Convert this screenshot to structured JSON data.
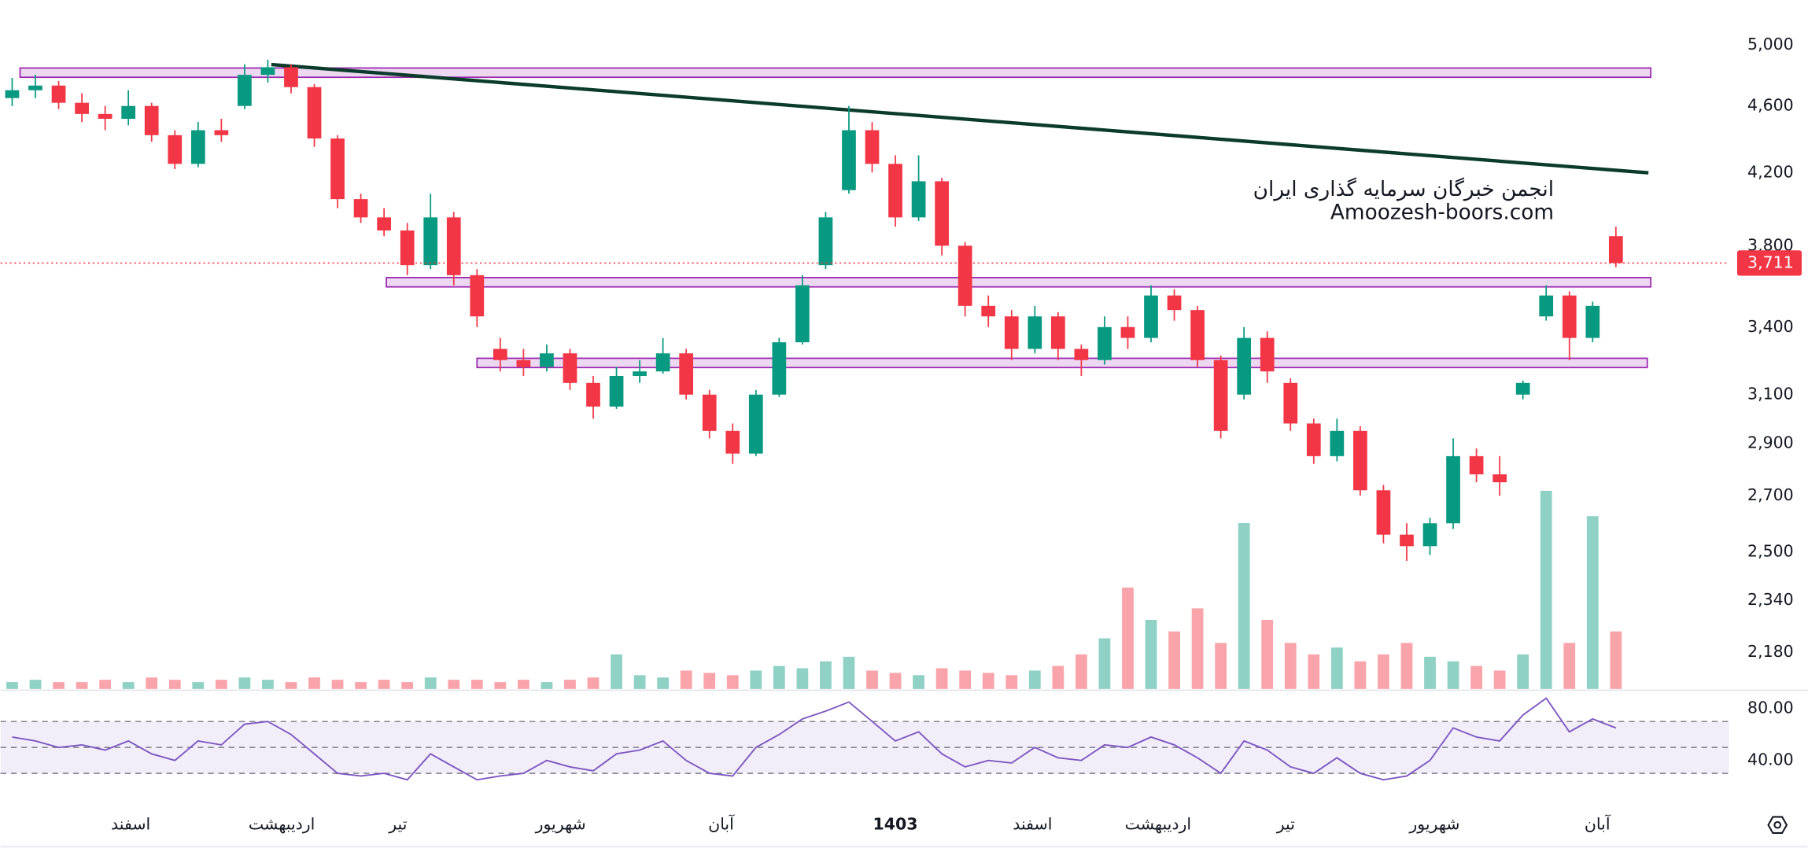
{
  "chart_data": {
    "type": "candlestick",
    "log_scale": true,
    "ylim": [
      2073,
      5317
    ],
    "yticks": [
      {
        "value": 2180,
        "label": "2,180"
      },
      {
        "value": 2340,
        "label": "2,340"
      },
      {
        "value": 2500,
        "label": "2,500"
      },
      {
        "value": 2700,
        "label": "2,700"
      },
      {
        "value": 2900,
        "label": "2,900"
      },
      {
        "value": 3100,
        "label": "3,100"
      },
      {
        "value": 3400,
        "label": "3,400"
      },
      {
        "value": 3800,
        "label": "3,800"
      },
      {
        "value": 4200,
        "label": "4,200"
      },
      {
        "value": 4600,
        "label": "4,600"
      },
      {
        "value": 5000,
        "label": "5,000"
      }
    ],
    "xlim": [
      -0.5,
      73.87
    ],
    "xticks": [
      {
        "value": 5.1,
        "label": "اسفند"
      },
      {
        "value": 11.6,
        "label": "اردیبهشت"
      },
      {
        "value": 16.6,
        "label": "تیر"
      },
      {
        "value": 23.6,
        "label": "شهریور"
      },
      {
        "value": 30.5,
        "label": "آبان"
      },
      {
        "value": 38,
        "label": "1403"
      },
      {
        "value": 43.9,
        "label": "اسفند"
      },
      {
        "value": 49.3,
        "label": "اردیبهشت"
      },
      {
        "value": 54.8,
        "label": "تیر"
      },
      {
        "value": 61.2,
        "label": "شهریور"
      },
      {
        "value": 68.2,
        "label": "آبان"
      }
    ],
    "open": [
      4650,
      4700,
      4730,
      4620,
      4550,
      4520,
      4600,
      4420,
      4250,
      4450,
      4600,
      4800,
      4850,
      4720,
      4400,
      4050,
      3950,
      3880,
      3700,
      3950,
      3650,
      3300,
      3250,
      3220,
      3280,
      3150,
      3050,
      3180,
      3200,
      3280,
      3100,
      2950,
      2860,
      3100,
      3330,
      3700,
      4100,
      4450,
      4250,
      3950,
      4150,
      3800,
      3500,
      3450,
      3300,
      3450,
      3300,
      3250,
      3400,
      3350,
      3550,
      3480,
      3250,
      3100,
      3350,
      3150,
      2980,
      2850,
      2950,
      2720,
      2560,
      2520,
      2600,
      2850,
      2780,
      3100,
      3450,
      3550,
      3350,
      3850
    ],
    "high": [
      4780,
      4800,
      4760,
      4680,
      4600,
      4700,
      4620,
      4450,
      4500,
      4520,
      4870,
      4900,
      4870,
      4740,
      4420,
      4080,
      4000,
      3920,
      4080,
      3980,
      3680,
      3350,
      3300,
      3320,
      3300,
      3180,
      3220,
      3250,
      3350,
      3300,
      3120,
      2980,
      3120,
      3350,
      3650,
      3980,
      4600,
      4500,
      4300,
      4300,
      4170,
      3820,
      3550,
      3480,
      3500,
      3470,
      3320,
      3450,
      3450,
      3600,
      3580,
      3500,
      3270,
      3400,
      3380,
      3170,
      3000,
      3000,
      2970,
      2740,
      2600,
      2620,
      2920,
      2880,
      2850,
      3160,
      3600,
      3570,
      3520,
      3900
    ],
    "low": [
      4600,
      4650,
      4580,
      4500,
      4450,
      4480,
      4380,
      4220,
      4230,
      4380,
      4580,
      4750,
      4680,
      4350,
      4000,
      3920,
      3850,
      3650,
      3680,
      3600,
      3400,
      3200,
      3180,
      3200,
      3120,
      3000,
      3040,
      3150,
      3190,
      3080,
      2920,
      2820,
      2850,
      3090,
      3320,
      3680,
      4080,
      4200,
      3900,
      3930,
      3750,
      3450,
      3400,
      3250,
      3280,
      3250,
      3180,
      3230,
      3300,
      3330,
      3430,
      3220,
      2920,
      3080,
      3150,
      2950,
      2820,
      2830,
      2700,
      2530,
      2470,
      2490,
      2580,
      2750,
      2700,
      3080,
      3430,
      3250,
      3330,
      3690
    ],
    "close": [
      4700,
      4730,
      4620,
      4550,
      4520,
      4600,
      4420,
      4250,
      4450,
      4420,
      4800,
      4850,
      4720,
      4400,
      4050,
      3950,
      3880,
      3700,
      3950,
      3650,
      3450,
      3250,
      3220,
      3280,
      3150,
      3050,
      3180,
      3200,
      3280,
      3100,
      2950,
      2860,
      3100,
      3330,
      3600,
      3950,
      4450,
      4250,
      3950,
      4150,
      3800,
      3500,
      3450,
      3300,
      3450,
      3300,
      3250,
      3400,
      3350,
      3550,
      3480,
      3250,
      2950,
      3350,
      3200,
      2980,
      2850,
      2950,
      2720,
      2560,
      2520,
      2600,
      2850,
      2780,
      2750,
      3150,
      3550,
      3350,
      3500,
      3711
    ],
    "up_color": "#089981",
    "down_color": "#f23645",
    "volume": {
      "ylim": [
        0,
        100
      ],
      "values": [
        3,
        4,
        3,
        3,
        4,
        3,
        5,
        4,
        3,
        4,
        5,
        4,
        3,
        5,
        4,
        3,
        4,
        3,
        5,
        4,
        4,
        3,
        4,
        3,
        4,
        5,
        15,
        6,
        5,
        8,
        7,
        6,
        8,
        10,
        9,
        12,
        14,
        8,
        7,
        6,
        9,
        8,
        7,
        6,
        8,
        10,
        15,
        22,
        44,
        30,
        25,
        35,
        20,
        72,
        30,
        20,
        15,
        18,
        12,
        15,
        20,
        14,
        12,
        10,
        8,
        15,
        86,
        20,
        75,
        25
      ]
    },
    "zones": [
      {
        "from": 4784,
        "to": 4845,
        "start": 0.34,
        "end": 70.5
      },
      {
        "from": 3592,
        "to": 3638,
        "start": 16.1,
        "end": 70.5
      },
      {
        "from": 3217,
        "to": 3258,
        "start": 20.0,
        "end": 70.35
      }
    ],
    "zone_color": "#9c27b0",
    "trendline": {
      "start": [
        11.15,
        4868
      ],
      "end": [
        70.4,
        4198
      ],
      "color": "#0b3b2a"
    },
    "last_price": {
      "value": 3711,
      "label": "3,711",
      "color": "#f23645"
    },
    "watermark": [
      "انجمن خبرگان سرمایه گذاری ایران",
      "Amoozesh-boors.com"
    ],
    "rsi": {
      "ylim": [
        6.2,
        93.3
      ],
      "yticks": [
        {
          "value": 40,
          "label": "40.00"
        },
        {
          "value": 80,
          "label": "80.00"
        }
      ],
      "levels": [
        30,
        50,
        70
      ],
      "color": "#7e57c2",
      "values": [
        58,
        55,
        50,
        52,
        48,
        55,
        45,
        40,
        55,
        52,
        68,
        70,
        60,
        45,
        30,
        28,
        30,
        25,
        45,
        35,
        25,
        28,
        30,
        40,
        35,
        32,
        45,
        48,
        55,
        40,
        30,
        28,
        50,
        60,
        72,
        78,
        85,
        70,
        55,
        62,
        45,
        35,
        40,
        38,
        50,
        42,
        40,
        52,
        50,
        58,
        52,
        42,
        30,
        55,
        48,
        35,
        30,
        42,
        30,
        25,
        28,
        40,
        65,
        58,
        55,
        75,
        88,
        62,
        72,
        65
      ]
    }
  }
}
